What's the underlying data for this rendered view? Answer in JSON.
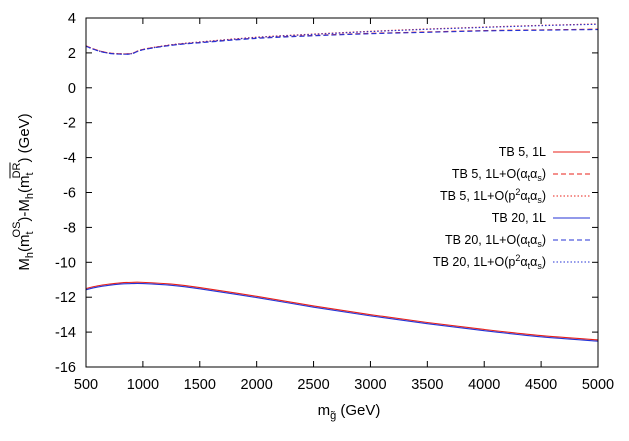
{
  "chart_data": {
    "type": "line",
    "title": "",
    "xlabel": {
      "base": "m",
      "sub": "g̃",
      "rest": " (GeV)"
    },
    "ylabel": {
      "p1": "M",
      "p1_sub": "h",
      "p2": "(m",
      "p2_sub": "t",
      "p2_sup": "OS",
      "p3": ")-M",
      "p3_sub": "h",
      "p4": "(m",
      "p4_sub": "t",
      "p4_sup": "DR",
      "p5": ") (GeV)"
    },
    "xlim": [
      500,
      5000
    ],
    "ylim": [
      -16,
      4
    ],
    "xticks": [
      500,
      1000,
      1500,
      2000,
      2500,
      3000,
      3500,
      4000,
      4500,
      5000
    ],
    "yticks": [
      -16,
      -14,
      -12,
      -10,
      -8,
      -6,
      -4,
      -2,
      0,
      2,
      4
    ],
    "grid": false,
    "legend_position": "right",
    "series": [
      {
        "name": "TB 5, 1L",
        "legend": {
          "pre": "TB 5, 1L",
          "sup": "",
          "mid": "",
          "post": ""
        },
        "color": "#e8211a",
        "dash": "solid",
        "x": [
          500,
          600,
          700,
          800,
          900,
          1000,
          1250,
          1500,
          2000,
          2500,
          3000,
          3500,
          4000,
          4500,
          5000
        ],
        "y": [
          -11.5,
          -11.35,
          -11.25,
          -11.18,
          -11.15,
          -11.15,
          -11.25,
          -11.45,
          -11.95,
          -12.5,
          -13.0,
          -13.45,
          -13.85,
          -14.2,
          -14.45
        ]
      },
      {
        "name": "TB 5, 1L+O(αtαs)",
        "legend": {
          "pre": "TB 5, 1L+O(α",
          "sup": "",
          "mid": "tα",
          "post": "s)"
        },
        "color": "#e8211a",
        "dash": "dashed",
        "x": [
          500,
          600,
          700,
          800,
          900,
          1000,
          1250,
          1500,
          2000,
          2500,
          3000,
          3500,
          4000,
          4500,
          5000
        ],
        "y": [
          2.4,
          2.15,
          2.0,
          1.95,
          1.97,
          2.2,
          2.45,
          2.6,
          2.85,
          3.0,
          3.12,
          3.2,
          3.28,
          3.32,
          3.36
        ]
      },
      {
        "name": "TB 5, 1L+O(p²αtαs)",
        "legend": {
          "pre": "TB 5, 1L+O(p",
          "sup": "2",
          "mid": "α",
          "post": "tαs)"
        },
        "color": "#e8211a",
        "dash": "dotted",
        "x": [
          500,
          600,
          700,
          800,
          900,
          1000,
          1250,
          1500,
          2000,
          2500,
          3000,
          3500,
          4000,
          4500,
          5000
        ],
        "y": [
          2.4,
          2.15,
          2.0,
          1.95,
          1.97,
          2.2,
          2.47,
          2.63,
          2.9,
          3.08,
          3.24,
          3.37,
          3.48,
          3.58,
          3.66
        ]
      },
      {
        "name": "TB 20, 1L",
        "legend": {
          "pre": "TB 20, 1L",
          "sup": "",
          "mid": "",
          "post": ""
        },
        "color": "#2433d6",
        "dash": "solid",
        "x": [
          500,
          600,
          700,
          800,
          900,
          1000,
          1250,
          1500,
          2000,
          2500,
          3000,
          3500,
          4000,
          4500,
          5000
        ],
        "y": [
          -11.57,
          -11.42,
          -11.32,
          -11.25,
          -11.22,
          -11.22,
          -11.32,
          -11.52,
          -12.02,
          -12.57,
          -13.07,
          -13.52,
          -13.92,
          -14.27,
          -14.52
        ]
      },
      {
        "name": "TB 20, 1L+O(αtαs)",
        "legend": {
          "pre": "TB 20, 1L+O(α",
          "sup": "",
          "mid": "tα",
          "post": "s)"
        },
        "color": "#2433d6",
        "dash": "dashed",
        "x": [
          500,
          600,
          700,
          800,
          900,
          1000,
          1250,
          1500,
          2000,
          2500,
          3000,
          3500,
          4000,
          4500,
          5000
        ],
        "y": [
          2.38,
          2.13,
          1.98,
          1.93,
          1.95,
          2.18,
          2.43,
          2.58,
          2.83,
          2.98,
          3.1,
          3.18,
          3.26,
          3.3,
          3.34
        ]
      },
      {
        "name": "TB 20, 1L+O(p²αtαs)",
        "legend": {
          "pre": "TB 20, 1L+O(p",
          "sup": "2",
          "mid": "α",
          "post": "tαs)"
        },
        "color": "#2433d6",
        "dash": "dotted",
        "x": [
          500,
          600,
          700,
          800,
          900,
          1000,
          1250,
          1500,
          2000,
          2500,
          3000,
          3500,
          4000,
          4500,
          5000
        ],
        "y": [
          2.38,
          2.13,
          1.98,
          1.93,
          1.95,
          2.18,
          2.45,
          2.61,
          2.88,
          3.06,
          3.22,
          3.35,
          3.46,
          3.56,
          3.64
        ]
      }
    ]
  }
}
